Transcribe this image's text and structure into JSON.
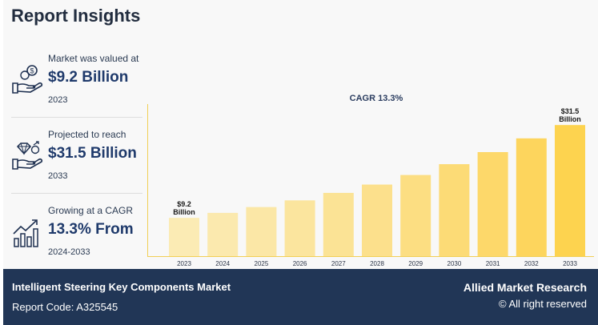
{
  "header": {
    "title": "Report Insights"
  },
  "stats": [
    {
      "label": "Market was valued at",
      "value": "$9.2 Billion",
      "year": "2023",
      "icon": "money-hand-icon"
    },
    {
      "label": "Projected to reach",
      "value": "$31.5 Billion",
      "year": "2033",
      "icon": "diamond-hand-icon"
    },
    {
      "label": "Growing at a CAGR",
      "value": "13.3% From",
      "year": "2024-2033",
      "icon": "growth-bars-icon"
    }
  ],
  "chart_data": {
    "type": "bar",
    "title": "CAGR 13.3%",
    "categories": [
      "2023",
      "2024",
      "2025",
      "2026",
      "2027",
      "2028",
      "2029",
      "2030",
      "2031",
      "2032",
      "2033"
    ],
    "values": [
      9.2,
      10.4,
      11.8,
      13.4,
      15.2,
      17.2,
      19.5,
      22.1,
      25.0,
      28.3,
      31.5
    ],
    "annotations": [
      {
        "category": "2023",
        "lines": [
          "$9.2",
          "Billion"
        ]
      },
      {
        "category": "2033",
        "lines": [
          "$31.5",
          "Billion"
        ]
      }
    ],
    "ylim": [
      0,
      35
    ],
    "bar_colors": [
      "#fbebb4",
      "#fbe9ae",
      "#fbe7a6",
      "#fbe59e",
      "#fbe395",
      "#fce08c",
      "#fcde82",
      "#fcdb76",
      "#fdd86a",
      "#fdd55d",
      "#fdd34f"
    ],
    "grid": false
  },
  "footer": {
    "market": "Intelligent Steering Key Components Market",
    "report_code": "Report Code: A325545",
    "brand": "Allied Market Research",
    "rights": "© All right reserved"
  }
}
